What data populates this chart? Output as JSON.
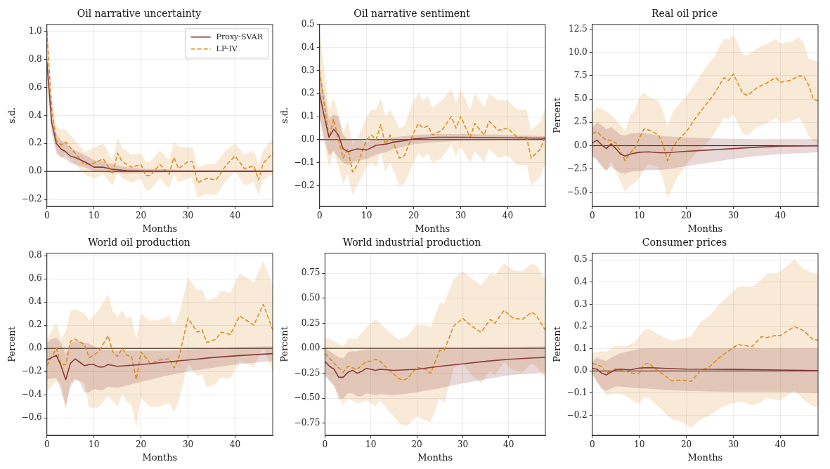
{
  "chart_data": [
    {
      "type": "line",
      "title": "Oil narrative uncertainty",
      "xlabel": "Months",
      "ylabel": "s.d.",
      "xlim": [
        0,
        48
      ],
      "xticks": [
        0,
        10,
        20,
        30,
        40
      ],
      "ylim": [
        -0.25,
        1.05
      ],
      "yticks": [
        {
          "value": -0.2,
          "label": "−0.2"
        },
        {
          "value": 0,
          "label": "0.0"
        },
        0.2,
        0.4,
        0.6,
        0.8,
        {
          "value": 1,
          "label": "1.0"
        }
      ],
      "grid": true,
      "legend": "top right",
      "marker": "none",
      "ref_lines": [
        {
          "axis": "y",
          "value": 0,
          "color": "#000000"
        }
      ],
      "series": [
        {
          "name": "Proxy-SVAR",
          "color": "#8b3a3a",
          "line_style": "solid",
          "x": [
            0,
            1,
            2,
            3,
            4,
            5,
            6,
            8,
            10,
            12,
            14,
            17,
            20,
            30,
            40,
            48
          ],
          "values": [
            0.78,
            0.35,
            0.2,
            0.16,
            0.14,
            0.11,
            0.1,
            0.07,
            0.03,
            0.03,
            0.015,
            0.005,
            0.003,
            0.002,
            0.002,
            0.002
          ],
          "lower": [
            0.7,
            0.28,
            0.13,
            0.1,
            0.09,
            0.06,
            0.05,
            0.03,
            0.0,
            -0.005,
            -0.01,
            -0.015,
            -0.01,
            -0.005,
            -0.005,
            -0.005
          ],
          "upper": [
            0.86,
            0.42,
            0.27,
            0.22,
            0.2,
            0.17,
            0.15,
            0.12,
            0.08,
            0.07,
            0.05,
            0.03,
            0.02,
            0.01,
            0.01,
            0.01
          ]
        },
        {
          "name": "LP-IV",
          "color": "#d98c1f",
          "line_style": "dashed",
          "x": [
            0,
            1,
            2,
            3,
            4,
            6,
            8,
            10,
            12,
            14,
            15,
            16,
            18,
            20,
            21,
            22,
            24,
            26,
            27,
            28,
            30,
            31,
            32,
            34,
            36,
            38,
            40,
            42,
            44,
            45,
            46,
            48
          ],
          "values": [
            1.0,
            0.45,
            0.22,
            0.19,
            0.21,
            0.13,
            0.05,
            0.06,
            0.09,
            -0.02,
            0.13,
            0.07,
            0.03,
            0.05,
            -0.03,
            -0.03,
            0.05,
            -0.02,
            0.1,
            0.02,
            0.07,
            0.07,
            -0.08,
            -0.05,
            -0.06,
            0.04,
            0.11,
            0.02,
            0.04,
            -0.06,
            0.06,
            0.13
          ],
          "lower": [
            0.9,
            0.35,
            0.15,
            0.1,
            0.12,
            0.05,
            -0.02,
            -0.05,
            -0.02,
            -0.1,
            0.0,
            -0.05,
            -0.08,
            -0.05,
            -0.14,
            -0.13,
            -0.05,
            -0.12,
            -0.02,
            -0.08,
            -0.05,
            -0.05,
            -0.19,
            -0.16,
            -0.17,
            -0.07,
            0.0,
            -0.1,
            -0.08,
            -0.17,
            -0.06,
            -0.02
          ],
          "upper": [
            1.05,
            0.55,
            0.32,
            0.3,
            0.3,
            0.22,
            0.14,
            0.17,
            0.2,
            0.08,
            0.24,
            0.17,
            0.12,
            0.13,
            0.07,
            0.07,
            0.15,
            0.08,
            0.21,
            0.18,
            0.17,
            0.17,
            0.03,
            0.05,
            0.06,
            0.15,
            0.2,
            0.12,
            0.15,
            0.05,
            0.15,
            0.24
          ]
        }
      ]
    },
    {
      "type": "line",
      "title": "Oil narrative sentiment",
      "xlabel": "Months",
      "ylabel": "s.d.",
      "xlim": [
        0,
        48
      ],
      "xticks": [
        0,
        10,
        20,
        30,
        40
      ],
      "ylim": [
        -0.29,
        0.5
      ],
      "yticks": [
        {
          "value": -0.2,
          "label": "−0.2"
        },
        {
          "value": -0.1,
          "label": "−0.1"
        },
        {
          "value": 0,
          "label": "0.0"
        },
        0.1,
        0.2,
        0.3,
        0.4,
        0.5
      ],
      "grid": true,
      "marker": "none",
      "ref_lines": [
        {
          "axis": "y",
          "value": 0,
          "color": "#000000"
        }
      ],
      "series": [
        {
          "color": "#8b3a3a",
          "line_style": "solid",
          "x": [
            0,
            1,
            2,
            3,
            4,
            5,
            6,
            8,
            10,
            12,
            14,
            16,
            18,
            20,
            25,
            30,
            40,
            48
          ],
          "values": [
            0.2,
            0.1,
            0.01,
            0.045,
            0.02,
            -0.04,
            -0.052,
            -0.04,
            -0.045,
            -0.025,
            -0.02,
            -0.01,
            -0.005,
            0.003,
            0.01,
            0.01,
            0.008,
            0.006
          ],
          "lower": [
            0.1,
            0.0,
            -0.07,
            -0.05,
            -0.08,
            -0.1,
            -0.11,
            -0.09,
            -0.085,
            -0.065,
            -0.055,
            -0.04,
            -0.03,
            -0.02,
            -0.01,
            -0.005,
            -0.003,
            -0.003
          ],
          "upper": [
            0.3,
            0.2,
            0.09,
            0.11,
            0.1,
            0.02,
            0.0,
            0.0,
            -0.01,
            0.0,
            0.005,
            0.01,
            0.015,
            0.02,
            0.025,
            0.025,
            0.02,
            0.015
          ]
        },
        {
          "color": "#d98c1f",
          "line_style": "dashed",
          "x": [
            0,
            2,
            3,
            4,
            5,
            6,
            7,
            8,
            10,
            11,
            12,
            13,
            14,
            15,
            17,
            18,
            20,
            21,
            22,
            23,
            24,
            26,
            28,
            29,
            30,
            32,
            33,
            35,
            36,
            38,
            40,
            42,
            44,
            45,
            47,
            48
          ],
          "values": [
            0.3,
            0.01,
            0.09,
            0.0,
            -0.08,
            -0.04,
            -0.14,
            -0.11,
            0.0,
            0.02,
            0.0,
            0.065,
            -0.02,
            0.02,
            -0.08,
            -0.07,
            0.03,
            0.07,
            0.05,
            0.06,
            0.02,
            0.04,
            0.1,
            0.05,
            0.1,
            0.01,
            0.07,
            0.02,
            0.08,
            0.04,
            0.05,
            0.01,
            0.01,
            -0.08,
            -0.04,
            0.02
          ],
          "lower": [
            0.1,
            -0.12,
            -0.05,
            -0.12,
            -0.19,
            -0.15,
            -0.24,
            -0.2,
            -0.12,
            -0.1,
            -0.12,
            -0.05,
            -0.14,
            -0.1,
            -0.2,
            -0.19,
            -0.1,
            -0.06,
            -0.08,
            -0.06,
            -0.1,
            -0.08,
            -0.02,
            -0.07,
            -0.03,
            -0.1,
            -0.05,
            -0.1,
            -0.04,
            -0.08,
            -0.07,
            -0.11,
            -0.11,
            -0.2,
            -0.16,
            -0.1
          ],
          "upper": [
            0.48,
            0.13,
            0.18,
            0.11,
            0.03,
            0.08,
            -0.02,
            0.0,
            0.1,
            0.13,
            0.13,
            0.18,
            0.1,
            0.13,
            0.05,
            0.06,
            0.17,
            0.2,
            0.17,
            0.19,
            0.14,
            0.17,
            0.22,
            0.16,
            0.22,
            0.13,
            0.2,
            0.14,
            0.2,
            0.17,
            0.17,
            0.13,
            0.13,
            0.04,
            0.08,
            0.14
          ]
        }
      ]
    },
    {
      "type": "line",
      "title": "Real oil price",
      "xlabel": "Months",
      "ylabel": "Percent",
      "xlim": [
        0,
        48
      ],
      "xticks": [
        0,
        10,
        20,
        30,
        40
      ],
      "ylim": [
        -6.5,
        13
      ],
      "yticks": [
        {
          "value": -5,
          "label": "−5.0"
        },
        {
          "value": -2.5,
          "label": "−2.5"
        },
        {
          "value": 0,
          "label": "0.0"
        },
        2.5,
        {
          "value": 5,
          "label": "5.0"
        },
        7.5,
        {
          "value": 10,
          "label": "10.0"
        },
        12.5
      ],
      "grid": true,
      "marker": "none",
      "ref_lines": [
        {
          "axis": "y",
          "value": 0,
          "color": "#000000"
        }
      ],
      "series": [
        {
          "color": "#8b3a3a",
          "line_style": "solid",
          "x": [
            0,
            1,
            2,
            3,
            4,
            5,
            6,
            7,
            8,
            10,
            12,
            14,
            16,
            20,
            25,
            30,
            35,
            40,
            48
          ],
          "values": [
            0.3,
            0.6,
            0.1,
            -0.3,
            0.2,
            -0.3,
            -0.9,
            -1.1,
            -0.9,
            -0.7,
            -0.65,
            -0.75,
            -0.75,
            -0.6,
            -0.45,
            -0.3,
            -0.15,
            -0.05,
            0.0
          ],
          "lower": [
            -1.2,
            -1.5,
            -2.2,
            -2.6,
            -2.2,
            -2.6,
            -2.9,
            -3.0,
            -2.8,
            -2.7,
            -2.6,
            -2.6,
            -2.5,
            -2.2,
            -1.8,
            -1.4,
            -1.1,
            -0.9,
            -0.7
          ],
          "upper": [
            1.9,
            2.5,
            2.2,
            1.8,
            2.0,
            1.6,
            1.2,
            1.1,
            1.3,
            1.4,
            1.3,
            1.1,
            1.0,
            0.9,
            0.8,
            0.75,
            0.7,
            0.7,
            0.7
          ]
        },
        {
          "color": "#d98c1f",
          "line_style": "dashed",
          "x": [
            0,
            1,
            2,
            3,
            4,
            5,
            7,
            8,
            9,
            10,
            11,
            12,
            14,
            15,
            16,
            17,
            18,
            20,
            22,
            24,
            26,
            28,
            29,
            30,
            32,
            33,
            35,
            37,
            39,
            40,
            42,
            44,
            45,
            46,
            47,
            48
          ],
          "values": [
            1.3,
            1.5,
            1.0,
            0.6,
            0.6,
            0.3,
            -1.6,
            -0.8,
            -0.3,
            0.8,
            1.8,
            1.7,
            1.2,
            0.2,
            -1.6,
            -0.3,
            0.5,
            1.5,
            3.0,
            4.3,
            5.6,
            7.3,
            7.0,
            7.7,
            5.6,
            5.4,
            6.2,
            6.7,
            7.3,
            6.8,
            7.0,
            7.5,
            7.4,
            6.5,
            5.0,
            4.8
          ],
          "lower": [
            -1.0,
            -1.5,
            -2.2,
            -2.8,
            -1.6,
            -2.8,
            -5.0,
            -4.3,
            -4.0,
            -3.5,
            -2.5,
            -2.0,
            -2.3,
            -3.5,
            -5.6,
            -4.5,
            -3.5,
            -2.0,
            -0.8,
            0.0,
            1.3,
            3.0,
            2.8,
            3.4,
            1.3,
            1.1,
            2.0,
            2.4,
            3.0,
            2.5,
            2.6,
            3.0,
            2.2,
            1.0,
            0.5,
            0.4
          ],
          "upper": [
            3.5,
            4.1,
            3.9,
            3.7,
            3.3,
            2.8,
            1.6,
            3.2,
            3.8,
            5.2,
            5.7,
            5.3,
            4.8,
            3.8,
            2.1,
            3.5,
            4.2,
            5.3,
            6.8,
            8.3,
            9.6,
            11.5,
            11.4,
            11.9,
            9.8,
            9.7,
            10.4,
            10.9,
            11.4,
            11.0,
            11.1,
            11.6,
            11.0,
            9.3,
            9.2,
            9.0
          ]
        }
      ]
    },
    {
      "type": "line",
      "title": "World oil production",
      "xlabel": "Months",
      "ylabel": "Percent",
      "xlim": [
        0,
        48
      ],
      "xticks": [
        0,
        10,
        20,
        30,
        40
      ],
      "ylim": [
        -0.75,
        0.82
      ],
      "yticks": [
        {
          "value": -0.6,
          "label": "−0.6"
        },
        {
          "value": -0.4,
          "label": "−0.4"
        },
        {
          "value": -0.2,
          "label": "−0.2"
        },
        {
          "value": 0,
          "label": "0.0"
        },
        0.2,
        0.4,
        0.6,
        0.8
      ],
      "grid": true,
      "marker": "none",
      "ref_lines": [
        {
          "axis": "y",
          "value": 0,
          "color": "#000000"
        }
      ],
      "series": [
        {
          "color": "#8b3a3a",
          "line_style": "solid",
          "x": [
            0,
            1,
            2,
            3,
            4,
            5,
            6,
            7,
            8,
            9,
            10,
            11,
            12,
            13,
            15,
            20,
            25,
            30,
            35,
            40,
            48
          ],
          "values": [
            -0.1,
            -0.08,
            -0.06,
            -0.15,
            -0.27,
            -0.13,
            -0.09,
            -0.12,
            -0.15,
            -0.14,
            -0.14,
            -0.16,
            -0.16,
            -0.14,
            -0.155,
            -0.14,
            -0.12,
            -0.1,
            -0.08,
            -0.065,
            -0.045
          ],
          "lower": [
            -0.27,
            -0.26,
            -0.26,
            -0.36,
            -0.5,
            -0.33,
            -0.27,
            -0.29,
            -0.38,
            -0.38,
            -0.35,
            -0.36,
            -0.36,
            -0.33,
            -0.34,
            -0.29,
            -0.24,
            -0.2,
            -0.17,
            -0.14,
            -0.11
          ],
          "upper": [
            0.05,
            0.08,
            0.09,
            0.05,
            -0.05,
            0.05,
            0.06,
            0.06,
            0.05,
            0.04,
            0.02,
            0.0,
            -0.01,
            -0.01,
            -0.02,
            -0.02,
            -0.02,
            -0.01,
            0.0,
            0.01,
            0.02
          ]
        },
        {
          "color": "#d98c1f",
          "line_style": "dashed",
          "x": [
            0,
            2,
            3,
            4,
            5,
            6,
            8,
            9,
            11,
            13,
            14,
            15,
            16,
            17,
            18,
            19,
            20,
            22,
            24,
            26,
            27,
            28,
            30,
            32,
            33,
            34,
            36,
            37,
            39,
            41,
            44,
            46,
            48
          ],
          "values": [
            -0.15,
            0.0,
            -0.14,
            -0.14,
            0.06,
            0.08,
            0.03,
            -0.08,
            -0.03,
            0.11,
            -0.03,
            -0.07,
            0.0,
            -0.06,
            -0.07,
            -0.27,
            -0.03,
            -0.13,
            -0.1,
            -0.09,
            -0.17,
            -0.09,
            0.26,
            0.14,
            0.16,
            0.05,
            0.08,
            0.14,
            0.12,
            0.28,
            0.2,
            0.38,
            0.16
          ],
          "lower": [
            -0.37,
            -0.28,
            -0.3,
            -0.53,
            -0.3,
            -0.26,
            -0.3,
            -0.51,
            -0.51,
            -0.41,
            -0.45,
            -0.5,
            -0.39,
            -0.46,
            -0.49,
            -0.68,
            -0.43,
            -0.51,
            -0.5,
            -0.47,
            -0.55,
            -0.46,
            -0.13,
            -0.24,
            -0.22,
            -0.34,
            -0.3,
            -0.25,
            -0.26,
            -0.11,
            -0.16,
            0.01,
            -0.2
          ],
          "upper": [
            0.08,
            0.22,
            0.08,
            0.15,
            0.32,
            0.34,
            0.3,
            0.24,
            0.33,
            0.47,
            0.32,
            0.27,
            0.33,
            0.26,
            0.27,
            0.08,
            0.3,
            0.24,
            0.25,
            0.28,
            0.2,
            0.28,
            0.61,
            0.5,
            0.51,
            0.41,
            0.44,
            0.5,
            0.48,
            0.65,
            0.57,
            0.75,
            0.55
          ]
        }
      ]
    },
    {
      "type": "line",
      "title": "World industrial production",
      "xlabel": "Months",
      "ylabel": "Percent",
      "xlim": [
        0,
        48
      ],
      "xticks": [
        0,
        10,
        20,
        30,
        40
      ],
      "ylim": [
        -0.87,
        0.95
      ],
      "yticks": [
        {
          "value": -0.75,
          "label": "−0.75"
        },
        {
          "value": -0.5,
          "label": "−0.50"
        },
        {
          "value": -0.25,
          "label": "−0.25"
        },
        {
          "value": 0,
          "label": "0.00"
        },
        0.25,
        {
          "value": 0.5,
          "label": "0.50"
        },
        0.75
      ],
      "grid": true,
      "marker": "none",
      "ref_lines": [
        {
          "axis": "y",
          "value": 0,
          "color": "#000000"
        }
      ],
      "series": [
        {
          "color": "#8b3a3a",
          "line_style": "solid",
          "x": [
            0,
            1,
            2,
            3,
            4,
            5,
            6,
            7,
            8,
            9,
            10,
            11,
            12,
            15,
            20,
            25,
            30,
            35,
            40,
            48
          ],
          "values": [
            -0.13,
            -0.18,
            -0.21,
            -0.29,
            -0.29,
            -0.24,
            -0.22,
            -0.25,
            -0.23,
            -0.2,
            -0.21,
            -0.22,
            -0.21,
            -0.22,
            -0.21,
            -0.18,
            -0.155,
            -0.13,
            -0.11,
            -0.09
          ],
          "lower": [
            -0.27,
            -0.33,
            -0.37,
            -0.51,
            -0.5,
            -0.45,
            -0.45,
            -0.48,
            -0.48,
            -0.45,
            -0.46,
            -0.47,
            -0.46,
            -0.47,
            -0.44,
            -0.4,
            -0.35,
            -0.31,
            -0.27,
            -0.24
          ],
          "upper": [
            0.0,
            -0.03,
            -0.06,
            -0.09,
            -0.1,
            -0.04,
            -0.03,
            -0.03,
            -0.02,
            -0.01,
            -0.01,
            -0.01,
            -0.01,
            -0.01,
            -0.01,
            0.0,
            0.0,
            0.01,
            0.01,
            0.02
          ]
        },
        {
          "color": "#d98c1f",
          "line_style": "dashed",
          "x": [
            0,
            2,
            4,
            5,
            7,
            9,
            10,
            11,
            12,
            14,
            16,
            17,
            18,
            20,
            22,
            23,
            25,
            26,
            28,
            30,
            32,
            34,
            36,
            37,
            39,
            41,
            43,
            45,
            46,
            48
          ],
          "values": [
            -0.05,
            -0.15,
            -0.24,
            -0.18,
            -0.21,
            -0.13,
            -0.13,
            -0.11,
            -0.13,
            -0.22,
            -0.3,
            -0.32,
            -0.3,
            -0.19,
            -0.21,
            -0.25,
            -0.02,
            -0.02,
            0.22,
            0.3,
            0.22,
            0.16,
            0.29,
            0.25,
            0.38,
            0.3,
            0.29,
            0.36,
            0.33,
            0.18
          ],
          "lower": [
            -0.25,
            -0.38,
            -0.56,
            -0.5,
            -0.55,
            -0.52,
            -0.55,
            -0.58,
            -0.52,
            -0.63,
            -0.74,
            -0.77,
            -0.77,
            -0.68,
            -0.72,
            -0.74,
            -0.5,
            -0.55,
            -0.2,
            -0.15,
            -0.27,
            -0.35,
            -0.23,
            -0.27,
            -0.14,
            -0.22,
            -0.24,
            -0.15,
            -0.18,
            -0.3
          ],
          "upper": [
            0.11,
            0.07,
            0.02,
            0.09,
            0.1,
            0.21,
            0.25,
            0.29,
            0.25,
            0.16,
            0.09,
            0.1,
            0.12,
            0.24,
            0.23,
            0.21,
            0.45,
            0.45,
            0.69,
            0.77,
            0.7,
            0.63,
            0.75,
            0.73,
            0.85,
            0.78,
            0.77,
            0.85,
            0.83,
            0.69
          ]
        }
      ]
    },
    {
      "type": "line",
      "title": "Consumer prices",
      "xlabel": "Months",
      "ylabel": "Percent",
      "xlim": [
        0,
        48
      ],
      "xticks": [
        0,
        10,
        20,
        30,
        40
      ],
      "ylim": [
        -0.29,
        0.53
      ],
      "yticks": [
        {
          "value": -0.2,
          "label": "−0.2"
        },
        {
          "value": -0.1,
          "label": "−0.1"
        },
        {
          "value": 0,
          "label": "0.0"
        },
        0.1,
        0.2,
        0.3,
        0.4,
        0.5
      ],
      "grid": true,
      "marker": "none",
      "ref_lines": [
        {
          "axis": "y",
          "value": 0,
          "color": "#000000"
        }
      ],
      "series": [
        {
          "color": "#8b3a3a",
          "line_style": "solid",
          "x": [
            0,
            1,
            2,
            3,
            4,
            5,
            6,
            8,
            10,
            12,
            15,
            20,
            30,
            40,
            48
          ],
          "values": [
            0.012,
            0.008,
            -0.01,
            -0.018,
            -0.005,
            0.005,
            0.008,
            0.005,
            0.013,
            0.015,
            0.012,
            0.008,
            0.007,
            0.004,
            0.002
          ],
          "lower": [
            -0.01,
            -0.05,
            -0.08,
            -0.09,
            -0.08,
            -0.07,
            -0.07,
            -0.075,
            -0.078,
            -0.08,
            -0.085,
            -0.09,
            -0.095,
            -0.095,
            -0.1
          ],
          "upper": [
            0.04,
            0.06,
            0.05,
            0.045,
            0.06,
            0.07,
            0.08,
            0.09,
            0.1,
            0.103,
            0.103,
            0.103,
            0.103,
            0.103,
            0.103
          ]
        },
        {
          "color": "#d98c1f",
          "line_style": "dashed",
          "x": [
            0,
            2,
            3,
            5,
            7,
            9,
            10,
            11,
            12,
            14,
            16,
            17,
            19,
            21,
            23,
            25,
            27,
            29,
            31,
            32,
            34,
            36,
            37,
            39,
            40,
            43,
            45,
            47,
            48
          ],
          "values": [
            0.035,
            0.02,
            -0.01,
            0.01,
            0.0,
            -0.013,
            -0.01,
            0.03,
            0.035,
            0.0,
            -0.03,
            -0.045,
            -0.04,
            -0.047,
            0.0,
            0.02,
            0.06,
            0.09,
            0.12,
            0.115,
            0.11,
            0.155,
            0.15,
            0.16,
            0.16,
            0.2,
            0.18,
            0.14,
            0.14
          ],
          "lower": [
            -0.015,
            -0.08,
            -0.11,
            -0.1,
            -0.11,
            -0.14,
            -0.145,
            -0.12,
            -0.12,
            -0.16,
            -0.2,
            -0.22,
            -0.23,
            -0.255,
            -0.22,
            -0.2,
            -0.17,
            -0.15,
            -0.14,
            -0.14,
            -0.155,
            -0.14,
            -0.12,
            -0.13,
            -0.13,
            -0.09,
            -0.13,
            -0.16,
            -0.16
          ],
          "upper": [
            0.08,
            0.09,
            0.085,
            0.115,
            0.11,
            0.13,
            0.155,
            0.185,
            0.19,
            0.165,
            0.145,
            0.135,
            0.145,
            0.155,
            0.22,
            0.25,
            0.3,
            0.34,
            0.38,
            0.38,
            0.38,
            0.41,
            0.44,
            0.44,
            0.45,
            0.5,
            0.46,
            0.44,
            0.44
          ]
        }
      ]
    }
  ]
}
